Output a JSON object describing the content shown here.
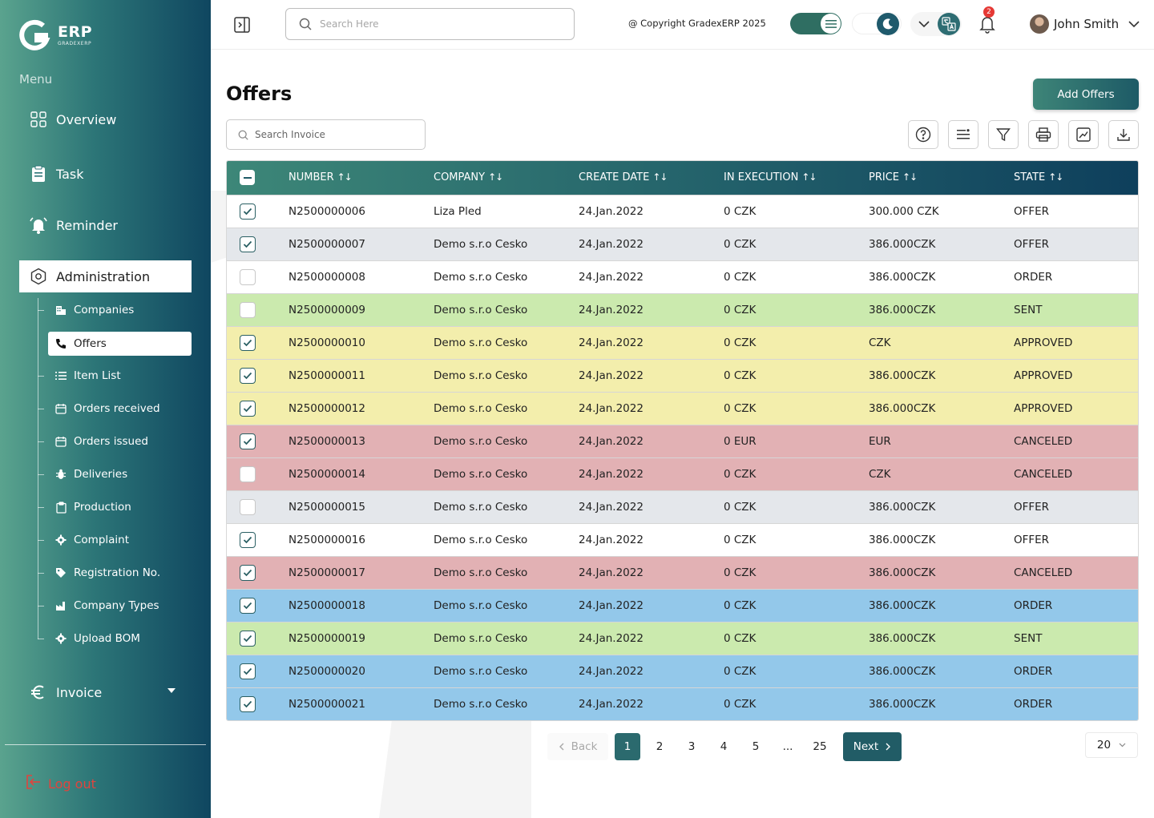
{
  "app": {
    "logo_text": "ERP",
    "logo_sub": "GRADEXERP"
  },
  "sidebar": {
    "menu_label": "Menu",
    "items": [
      {
        "label": "Overview",
        "icon": "grid-icon"
      },
      {
        "label": "Task",
        "icon": "clipboard-icon"
      },
      {
        "label": "Reminder",
        "icon": "bell-ring-icon"
      },
      {
        "label": "Administration",
        "icon": "hexagon-settings-icon"
      }
    ],
    "sub_items": [
      {
        "label": "Companies",
        "icon": "building-icon"
      },
      {
        "label": "Offers",
        "icon": "phone-icon"
      },
      {
        "label": "Item List",
        "icon": "list-icon"
      },
      {
        "label": "Orders received",
        "icon": "calendar-icon"
      },
      {
        "label": "Orders issued",
        "icon": "calendar-icon"
      },
      {
        "label": "Deliveries",
        "icon": "bug-icon"
      },
      {
        "label": "Production",
        "icon": "clipboard-icon"
      },
      {
        "label": "Complaint",
        "icon": "gear-icon"
      },
      {
        "label": "Registration No.",
        "icon": "tag-icon"
      },
      {
        "label": "Company Types",
        "icon": "factory-icon"
      },
      {
        "label": "Upload BOM",
        "icon": "gear-icon"
      }
    ],
    "invoice": {
      "label": "Invoice",
      "icon": "euro-icon"
    },
    "logout_label": "Log out"
  },
  "topbar": {
    "search_placeholder": "Search Here",
    "copyright": "@ Copyright GradexERP 2025",
    "notification_count": "2",
    "user_name": "John Smith"
  },
  "page": {
    "title": "Offers",
    "add_button": "Add Offers",
    "search_placeholder": "Search Invoice"
  },
  "table": {
    "headers": [
      "NUMBER",
      "COMPANY",
      "CREATE DATE",
      "IN EXECUTION",
      "PRICE",
      "STATE"
    ],
    "rows": [
      {
        "checked": true,
        "number": "N2500000006",
        "company": "Liza Pled",
        "date": "24.Jan.2022",
        "execution": "0 CZK",
        "price": "300.000 CZK",
        "state": "OFFER",
        "color": "#ffffff"
      },
      {
        "checked": true,
        "number": "N2500000007",
        "company": "Demo s.r.o Cesko",
        "date": "24.Jan.2022",
        "execution": "0 CZK",
        "price": "386.000CZK",
        "state": "OFFER",
        "color": "#e4e7eb"
      },
      {
        "checked": false,
        "number": "N2500000008",
        "company": "Demo s.r.o Cesko",
        "date": "24.Jan.2022",
        "execution": "0 CZK",
        "price": "386.000CZK",
        "state": "ORDER",
        "color": "#ffffff"
      },
      {
        "checked": false,
        "number": "N2500000009",
        "company": "Demo s.r.o Cesko",
        "date": "24.Jan.2022",
        "execution": "0 CZK",
        "price": "386.000CZK",
        "state": "SENT",
        "color": "#cbeaae"
      },
      {
        "checked": true,
        "number": "N2500000010",
        "company": "Demo s.r.o Cesko",
        "date": "24.Jan.2022",
        "execution": "0 CZK",
        "price": "CZK",
        "state": "APPROVED",
        "color": "#f3eeac"
      },
      {
        "checked": true,
        "number": "N2500000011",
        "company": "Demo s.r.o Cesko",
        "date": "24.Jan.2022",
        "execution": "0 CZK",
        "price": "386.000CZK",
        "state": "APPROVED",
        "color": "#f3eeac"
      },
      {
        "checked": true,
        "number": "N2500000012",
        "company": "Demo s.r.o Cesko",
        "date": "24.Jan.2022",
        "execution": "0 CZK",
        "price": "386.000CZK",
        "state": "APPROVED",
        "color": "#f3eeac"
      },
      {
        "checked": true,
        "number": "N2500000013",
        "company": "Demo s.r.o Cesko",
        "date": "24.Jan.2022",
        "execution": "0 EUR",
        "price": "EUR",
        "state": "CANCELED",
        "color": "#e2b1b4"
      },
      {
        "checked": false,
        "number": "N2500000014",
        "company": "Demo s.r.o Cesko",
        "date": "24.Jan.2022",
        "execution": "0 CZK",
        "price": "CZK",
        "state": "CANCELED",
        "color": "#e2b1b4"
      },
      {
        "checked": false,
        "number": "N2500000015",
        "company": "Demo s.r.o Cesko",
        "date": "24.Jan.2022",
        "execution": "0 CZK",
        "price": "386.000CZK",
        "state": "OFFER",
        "color": "#e4e7eb"
      },
      {
        "checked": true,
        "number": "N2500000016",
        "company": "Demo s.r.o Cesko",
        "date": "24.Jan.2022",
        "execution": "0 CZK",
        "price": "386.000CZK",
        "state": "OFFER",
        "color": "#ffffff"
      },
      {
        "checked": true,
        "number": "N2500000017",
        "company": "Demo s.r.o Cesko",
        "date": "24.Jan.2022",
        "execution": "0 CZK",
        "price": "386.000CZK",
        "state": "CANCELED",
        "color": "#e2b1b4"
      },
      {
        "checked": true,
        "number": "N2500000018",
        "company": "Demo s.r.o Cesko",
        "date": "24.Jan.2022",
        "execution": "0 CZK",
        "price": "386.000CZK",
        "state": "ORDER",
        "color": "#93c8ea"
      },
      {
        "checked": true,
        "number": "N2500000019",
        "company": "Demo s.r.o Cesko",
        "date": "24.Jan.2022",
        "execution": "0 CZK",
        "price": "386.000CZK",
        "state": "SENT",
        "color": "#cbeaae"
      },
      {
        "checked": true,
        "number": "N2500000020",
        "company": "Demo s.r.o Cesko",
        "date": "24.Jan.2022",
        "execution": "0 CZK",
        "price": "386.000CZK",
        "state": "ORDER",
        "color": "#93c8ea"
      },
      {
        "checked": true,
        "number": "N2500000021",
        "company": "Demo s.r.o Cesko",
        "date": "24.Jan.2022",
        "execution": "0 CZK",
        "price": "386.000CZK",
        "state": "ORDER",
        "color": "#93c8ea"
      }
    ]
  },
  "pagination": {
    "back_label": "Back",
    "pages": [
      "1",
      "2",
      "3",
      "4",
      "5",
      "...",
      "25"
    ],
    "current": "1",
    "next_label": "Next",
    "per_page": "20"
  },
  "colors": {
    "accent": "#215c66",
    "logout": "#e0443e",
    "badge": "#e53935"
  }
}
